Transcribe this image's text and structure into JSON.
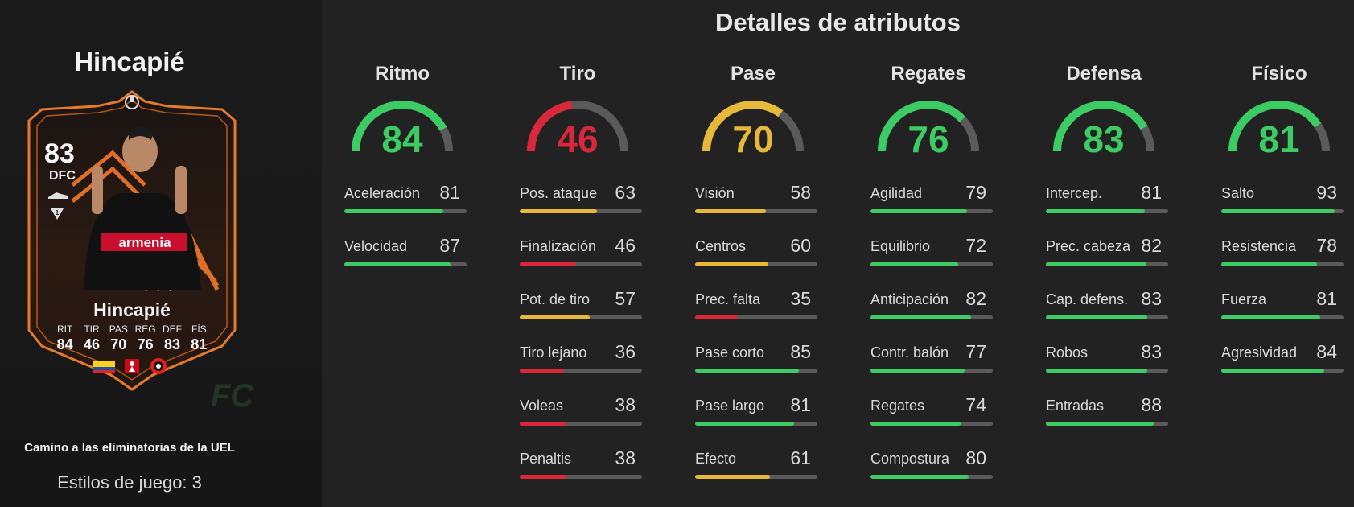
{
  "player": {
    "name": "Hincapié",
    "rating": "83",
    "position": "DFC",
    "promo": "Camino a las eliminatorias de la UEL",
    "playstyles": "Estilos de juego: 3",
    "watermark": "FC",
    "card_stats": [
      {
        "label": "RIT",
        "value": "84"
      },
      {
        "label": "TIR",
        "value": "46"
      },
      {
        "label": "PAS",
        "value": "70"
      },
      {
        "label": "REG",
        "value": "76"
      },
      {
        "label": "DEF",
        "value": "83"
      },
      {
        "label": "FÍS",
        "value": "81"
      }
    ],
    "icons": [
      "uel-logo-icon",
      "boot-icon",
      "rarity-icon",
      "ecuador-flag-icon",
      "bundesliga-icon",
      "leverkusen-crest-icon"
    ]
  },
  "attributes_title": "Detalles de atributos",
  "colors": {
    "green": "#3ccc63",
    "yellow": "#e6b93a",
    "red": "#d8283a",
    "track": "#5a5a5a"
  },
  "categories": [
    {
      "name": "Ritmo",
      "value": "84",
      "color": "green",
      "stats": [
        {
          "name": "Aceleración",
          "value": "81",
          "color": "green"
        },
        {
          "name": "Velocidad",
          "value": "87",
          "color": "green"
        }
      ]
    },
    {
      "name": "Tiro",
      "value": "46",
      "color": "red",
      "stats": [
        {
          "name": "Pos. ataque",
          "value": "63",
          "color": "yellow"
        },
        {
          "name": "Finalización",
          "value": "46",
          "color": "red"
        },
        {
          "name": "Pot. de tiro",
          "value": "57",
          "color": "yellow"
        },
        {
          "name": "Tiro lejano",
          "value": "36",
          "color": "red"
        },
        {
          "name": "Voleas",
          "value": "38",
          "color": "red"
        },
        {
          "name": "Penaltis",
          "value": "38",
          "color": "red"
        }
      ]
    },
    {
      "name": "Pase",
      "value": "70",
      "color": "yellow",
      "stats": [
        {
          "name": "Visión",
          "value": "58",
          "color": "yellow"
        },
        {
          "name": "Centros",
          "value": "60",
          "color": "yellow"
        },
        {
          "name": "Prec. falta",
          "value": "35",
          "color": "red"
        },
        {
          "name": "Pase corto",
          "value": "85",
          "color": "green"
        },
        {
          "name": "Pase largo",
          "value": "81",
          "color": "green"
        },
        {
          "name": "Efecto",
          "value": "61",
          "color": "yellow"
        }
      ]
    },
    {
      "name": "Regates",
      "value": "76",
      "color": "green",
      "stats": [
        {
          "name": "Agilidad",
          "value": "79",
          "color": "green"
        },
        {
          "name": "Equilibrio",
          "value": "72",
          "color": "green"
        },
        {
          "name": "Anticipación",
          "value": "82",
          "color": "green"
        },
        {
          "name": "Contr. balón",
          "value": "77",
          "color": "green"
        },
        {
          "name": "Regates",
          "value": "74",
          "color": "green"
        },
        {
          "name": "Compostura",
          "value": "80",
          "color": "green"
        }
      ]
    },
    {
      "name": "Defensa",
      "value": "83",
      "color": "green",
      "stats": [
        {
          "name": "Intercep.",
          "value": "81",
          "color": "green"
        },
        {
          "name": "Prec. cabeza",
          "value": "82",
          "color": "green"
        },
        {
          "name": "Cap. defens.",
          "value": "83",
          "color": "green"
        },
        {
          "name": "Robos",
          "value": "83",
          "color": "green"
        },
        {
          "name": "Entradas",
          "value": "88",
          "color": "green"
        }
      ]
    },
    {
      "name": "Físico",
      "value": "81",
      "color": "green",
      "stats": [
        {
          "name": "Salto",
          "value": "93",
          "color": "green"
        },
        {
          "name": "Resistencia",
          "value": "78",
          "color": "green"
        },
        {
          "name": "Fuerza",
          "value": "81",
          "color": "green"
        },
        {
          "name": "Agresividad",
          "value": "84",
          "color": "green"
        }
      ]
    }
  ]
}
